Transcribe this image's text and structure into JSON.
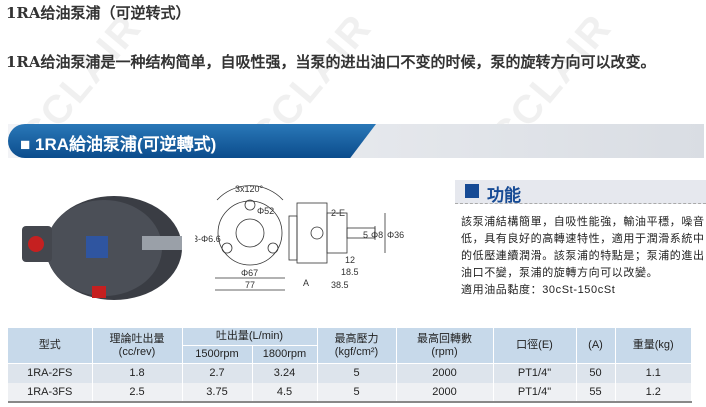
{
  "heading": "1RA给油泵浦（可逆转式）",
  "description": "1RA给油泵浦是一种结构简单，自吸性强，当泵的进出油口不变的时候，泵的旋转方向可以改变。",
  "banner_title": "■ 1RA給油泵浦(可逆轉式)",
  "watermark": "CCLAIR",
  "drawing": {
    "labels": [
      "3x120°",
      "Φ52",
      "3-Φ6.6",
      "Φ67",
      "77",
      "2-E",
      "5",
      "Φ8",
      "Φ36",
      "12",
      "18.5",
      "A",
      "38.5"
    ]
  },
  "features": {
    "title": "功能",
    "lines": [
      "該泵浦結構簡單，自吸性能強，輸油平穩，噪音",
      "低，具有良好的高轉速特性，適用于潤滑系統中",
      "的低壓連續潤滑。該泵浦的特點是；泵浦的進出",
      "油口不變，泵浦的旋轉方向可以改變。",
      "適用油品黏度：30cSt-150cSt"
    ]
  },
  "table": {
    "headers": {
      "model": "型式",
      "disp": "理論吐出量\n(cc/rev)",
      "flow": "吐出量(L/min)",
      "rpm1": "1500rpm",
      "rpm2": "1800rpm",
      "pressure": "最高壓力\n(kgf/cm²)",
      "speed": "最高回轉數\n(rpm)",
      "port": "口徑(E)",
      "a": "(A)",
      "weight": "重量(kg)"
    },
    "rows": [
      [
        "1RA-2FS",
        "1.8",
        "2.7",
        "3.24",
        "5",
        "2000",
        "PT1/4\"",
        "50",
        "1.1"
      ],
      [
        "1RA-3FS",
        "2.5",
        "3.75",
        "4.5",
        "5",
        "2000",
        "PT1/4\"",
        "55",
        "1.2"
      ]
    ]
  }
}
